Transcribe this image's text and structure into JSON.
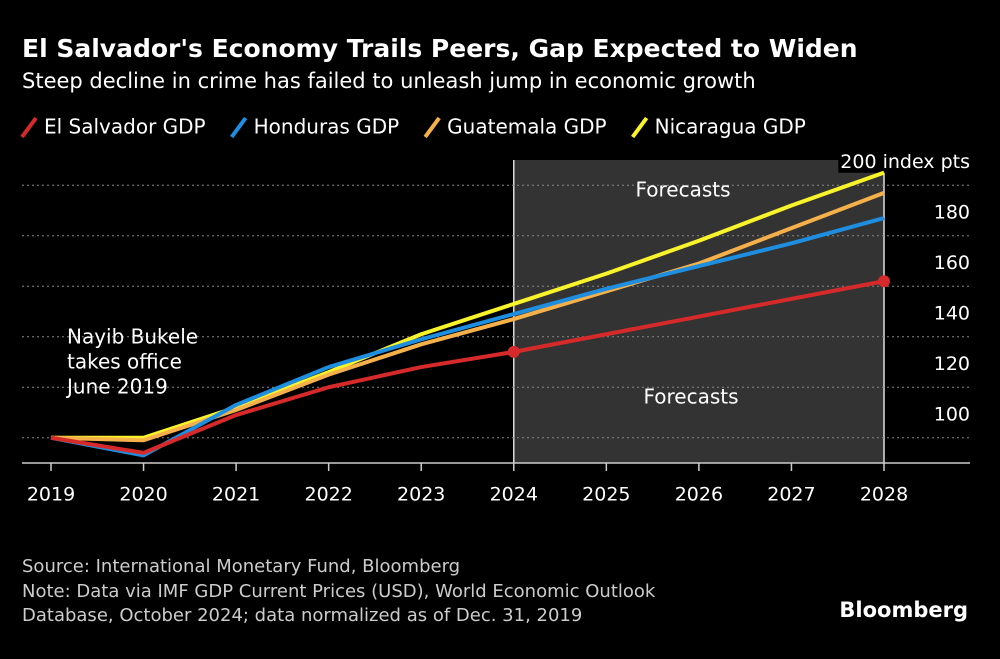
{
  "chart_data": {
    "type": "line",
    "title": "El Salvador's Economy Trails Peers, Gap Expected to Widen",
    "subtitle": "Steep decline in crime has failed to unleash jump in economic growth",
    "x": [
      2019,
      2020,
      2021,
      2022,
      2023,
      2024,
      2025,
      2026,
      2027,
      2028
    ],
    "xlim": [
      2019,
      2028
    ],
    "xticks": [
      2019,
      2020,
      2021,
      2022,
      2023,
      2024,
      2025,
      2026,
      2027,
      2028
    ],
    "ylim": [
      90,
      210
    ],
    "yticks": [
      100,
      120,
      140,
      160,
      180,
      {
        "value": 200,
        "label": "200 index pts"
      }
    ],
    "grid": true,
    "series": [
      {
        "name": "El Salvador GDP",
        "color": "#d62a2a",
        "values": [
          100,
          94,
          109,
          120,
          128,
          134,
          141,
          148,
          155,
          162
        ]
      },
      {
        "name": "Honduras GDP",
        "color": "#1e8ee0",
        "values": [
          100,
          93,
          113,
          128,
          139,
          149,
          159,
          168,
          177,
          187
        ]
      },
      {
        "name": "Guatemala GDP",
        "color": "#f5b04a",
        "values": [
          100,
          99,
          111,
          125,
          137,
          147,
          158,
          169,
          183,
          197
        ]
      },
      {
        "name": "Nicaragua GDP",
        "color": "#f8f32b",
        "values": [
          100,
          100,
          112,
          126,
          141,
          153,
          165,
          178,
          192,
          205
        ]
      }
    ],
    "shaded_region": [
      2024,
      2028
    ],
    "annotations": [
      "Forecasts",
      "Forecasts"
    ],
    "bukele_note": [
      "Nayib Bukele",
      "takes office",
      "June 2019"
    ],
    "source": "Source: International Monetary Fund, Bloomberg",
    "note": [
      "Note: Data via IMF GDP Current Prices (USD), World Economic Outlook",
      "Database, October 2024; data normalized as of Dec. 31, 2019"
    ],
    "brand": "Bloomberg"
  }
}
